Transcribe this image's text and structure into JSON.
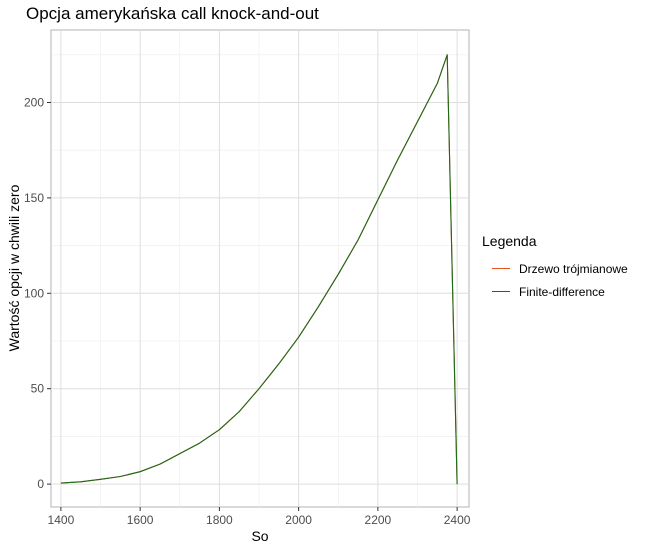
{
  "chart_data": {
    "type": "line",
    "title": "Opcja amerykańska call knock-and-out",
    "xlabel": "So",
    "ylabel": "Wartość opcji w chwili zero",
    "xlim": [
      1375,
      2430
    ],
    "ylim": [
      -12,
      238
    ],
    "xticks": [
      1400,
      1600,
      1800,
      2000,
      2200,
      2400
    ],
    "yticks": [
      0,
      50,
      100,
      150,
      200
    ],
    "grid": true,
    "legend": {
      "title": "Legenda",
      "position": "right"
    },
    "series": [
      {
        "name": "Drzewo trójmianowe",
        "color": "#E8541A",
        "x": [
          1400,
          1450,
          1500,
          1550,
          1600,
          1650,
          1700,
          1750,
          1800,
          1850,
          1900,
          1950,
          2000,
          2050,
          2100,
          2150,
          2200,
          2250,
          2300,
          2350,
          2375,
          2400
        ],
        "y": [
          0.5,
          1.2,
          2.5,
          4.0,
          6.5,
          10.5,
          16.0,
          21.5,
          28.5,
          38.0,
          50.0,
          63.0,
          77.0,
          93.0,
          110.0,
          128.0,
          149.0,
          170.0,
          190.0,
          210.0,
          225.0,
          0
        ]
      },
      {
        "name": "Finite-difference",
        "color": "#1C6B1C",
        "x": [
          1400,
          1450,
          1500,
          1550,
          1600,
          1650,
          1700,
          1750,
          1800,
          1850,
          1900,
          1950,
          2000,
          2050,
          2100,
          2150,
          2200,
          2250,
          2300,
          2350,
          2375,
          2400
        ],
        "y": [
          0.5,
          1.2,
          2.5,
          4.0,
          6.5,
          10.5,
          16.0,
          21.5,
          28.5,
          38.0,
          50.0,
          63.0,
          77.0,
          93.0,
          110.0,
          128.0,
          149.0,
          170.0,
          190.0,
          210.0,
          225.0,
          0
        ]
      }
    ]
  }
}
